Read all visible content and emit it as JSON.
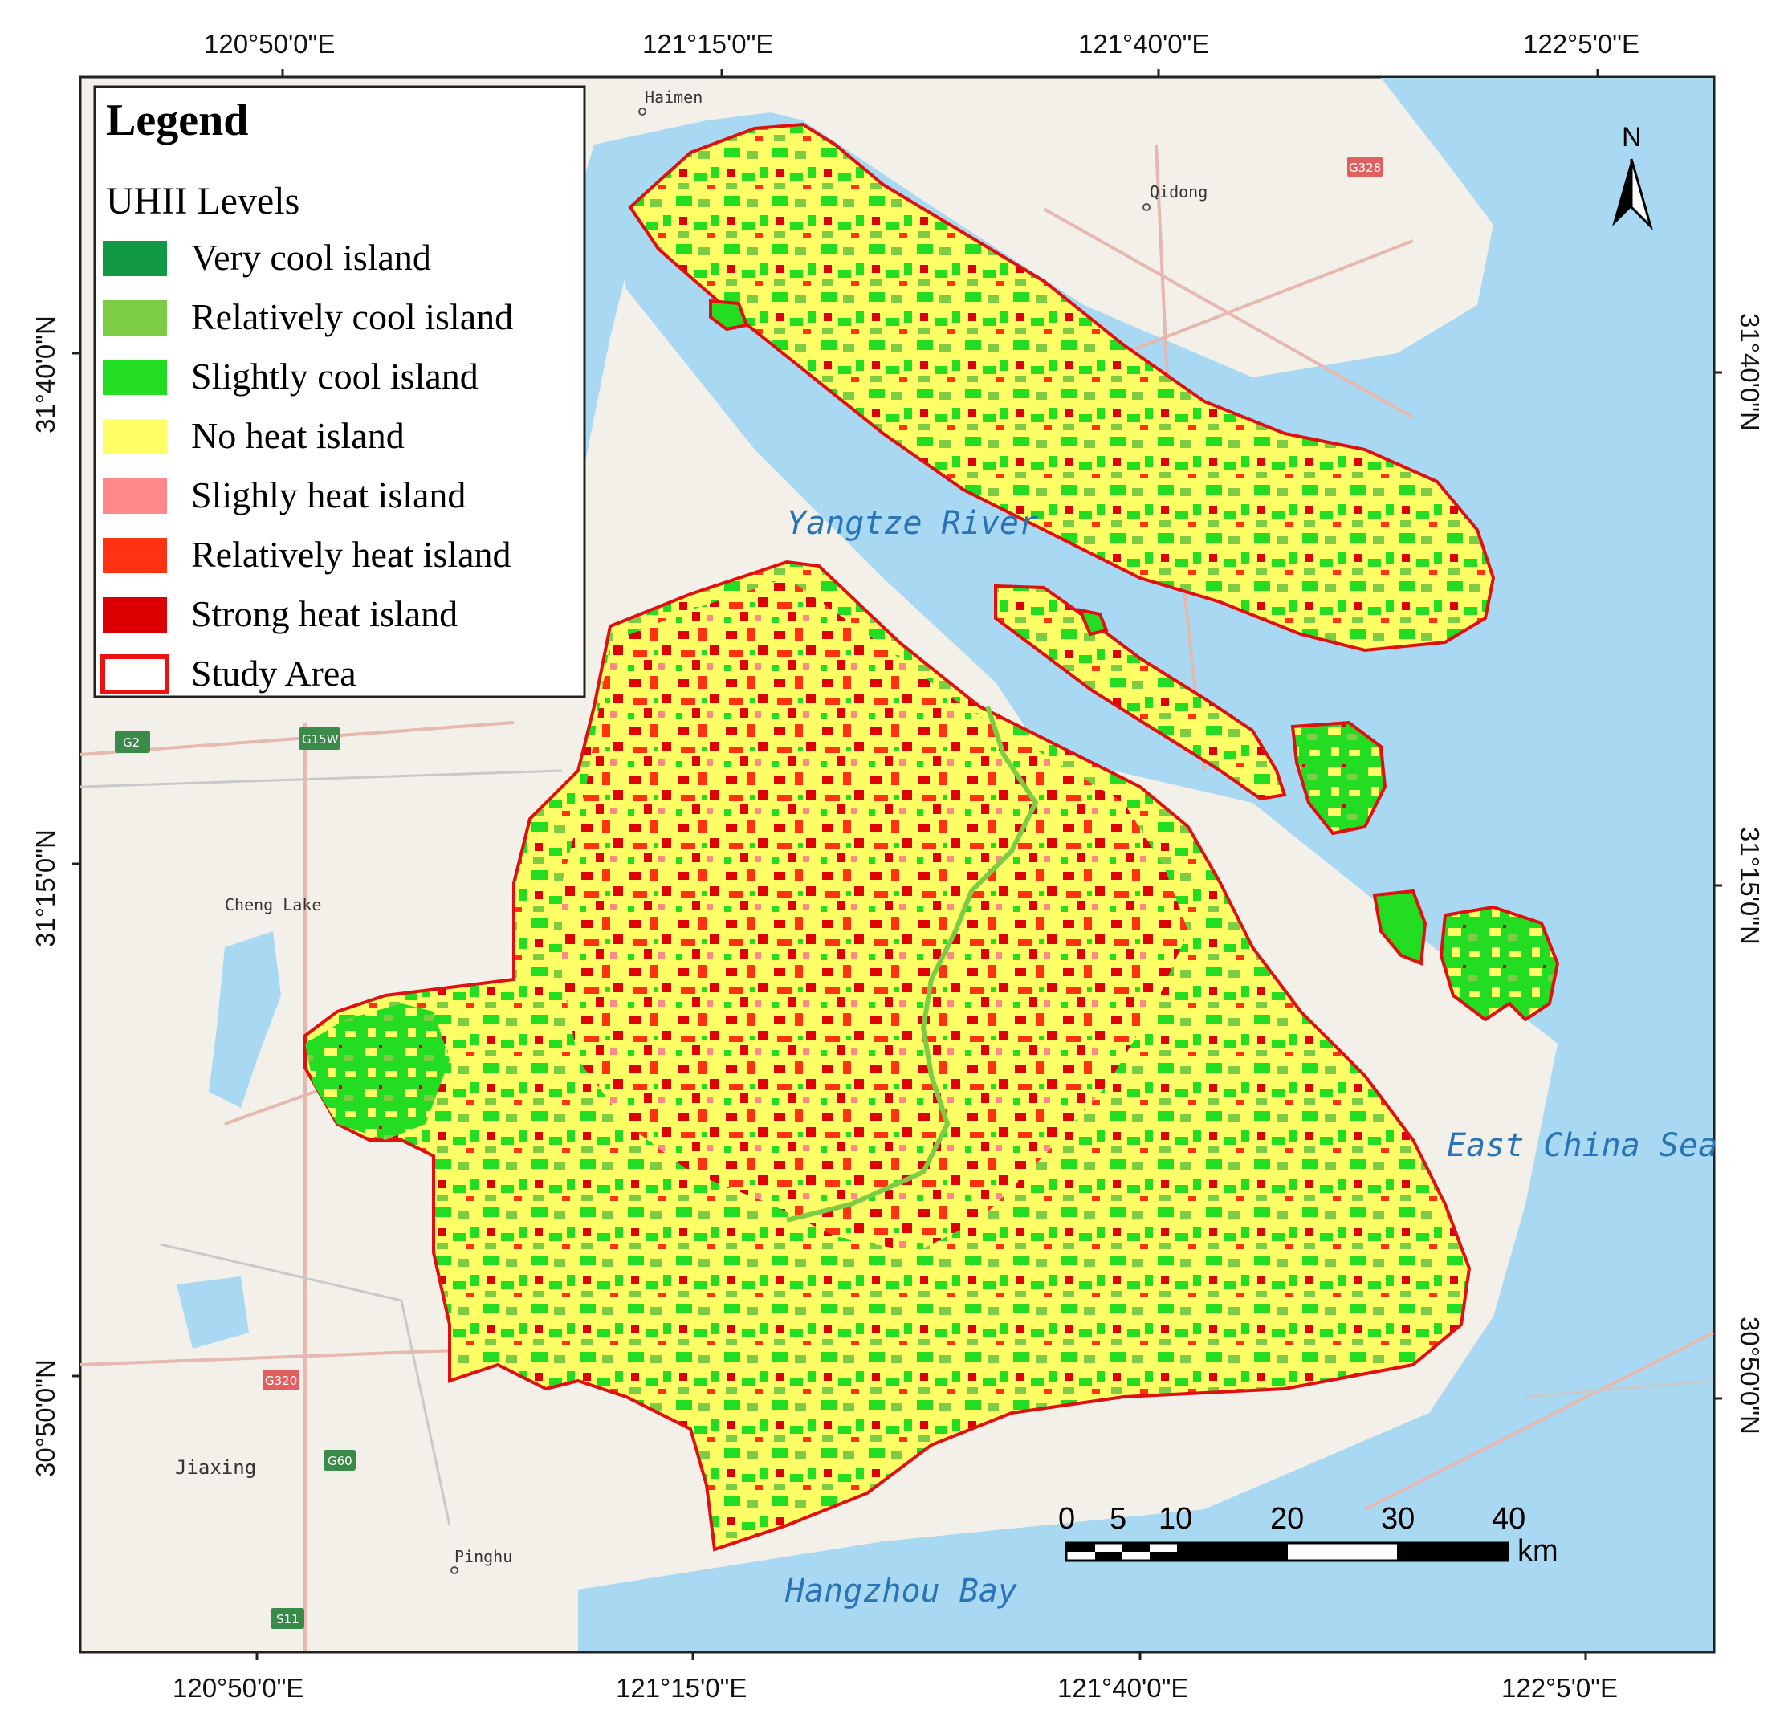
{
  "map": {
    "top_longitudes": [
      "120°50'0\"E",
      "121°15'0\"E",
      "121°40'0\"E",
      "122°5'0\"E"
    ],
    "bottom_longitudes": [
      "120°50'0\"E",
      "121°15'0\"E",
      "121°40'0\"E",
      "122°5'0\"E"
    ],
    "left_latitudes": [
      "31°40'0\"N",
      "31°15'0\"N",
      "30°50'0\"N"
    ],
    "right_latitudes": [
      "31°40'0\"N",
      "31°15'0\"N",
      "30°50'0\"N"
    ],
    "water_labels": {
      "yangtze": "Yangtze River",
      "east_china_sea": "East China Sea",
      "hangzhou_bay": "Hangzhou Bay"
    },
    "places": {
      "haimen": "Haimen",
      "qidong": "Qidong",
      "cheng_lake": "Cheng Lake",
      "jiaxing": "Jiaxing",
      "pinghu": "Pinghu"
    },
    "road_badges": [
      "G2",
      "G15W",
      "G328",
      "G320",
      "G60",
      "S11"
    ],
    "north": "N"
  },
  "legend": {
    "title": "Legend",
    "subtitle": "UHII  Levels",
    "items": [
      {
        "label": "Very cool island",
        "color": "#119944"
      },
      {
        "label": "Relatively cool island",
        "color": "#7ccc44"
      },
      {
        "label": "Slightly cool island",
        "color": "#22dd22"
      },
      {
        "label": "No heat island",
        "color": "#ffff66"
      },
      {
        "label": "Slighly heat island",
        "color": "#ff8888"
      },
      {
        "label": "Relatively heat island",
        "color": "#ff3311"
      },
      {
        "label": "Strong heat island",
        "color": "#dd0000"
      },
      {
        "label": "Study Area",
        "color": "#ffffff",
        "outline": "#ee1111"
      }
    ]
  },
  "scale_bar": {
    "ticks": [
      "0",
      "5",
      "10",
      "20",
      "30",
      "40"
    ],
    "unit": "km"
  },
  "colors": {
    "sea": "#a9d9f2",
    "land": "#f3f0ea",
    "study_outline": "#e01010"
  }
}
